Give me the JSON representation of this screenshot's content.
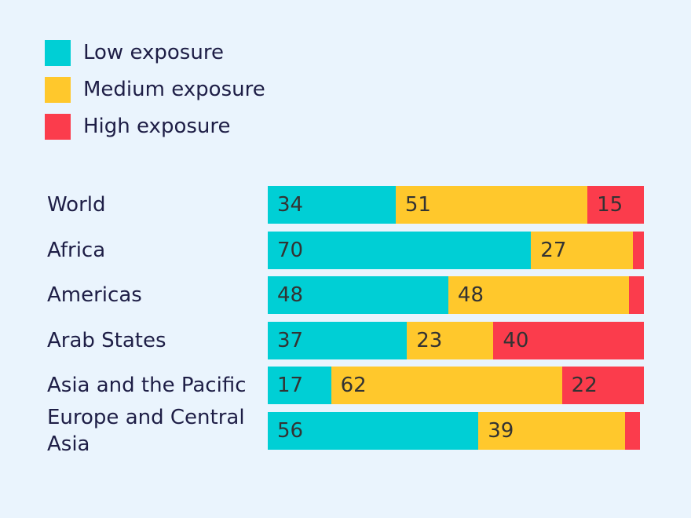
{
  "chart_data": {
    "type": "bar",
    "orientation": "horizontal",
    "stacked": true,
    "categories": [
      "World",
      "Africa",
      "Americas",
      "Arab States",
      "Asia and the Pacific",
      "Europe and Central Asia"
    ],
    "series": [
      {
        "name": "Low exposure",
        "color": "#00cfd5",
        "values": [
          34,
          70,
          48,
          37,
          17,
          56
        ]
      },
      {
        "name": "Medium exposure",
        "color": "#ffc82c",
        "values": [
          51,
          27,
          48,
          23,
          62,
          39
        ]
      },
      {
        "name": "High exposure",
        "color": "#fb3c4c",
        "values": [
          15,
          3,
          4,
          40,
          22,
          4
        ]
      }
    ],
    "data_labels": [
      [
        "34",
        "51",
        "15"
      ],
      [
        "70",
        "27",
        ""
      ],
      [
        "48",
        "48",
        ""
      ],
      [
        "37",
        "23",
        "40"
      ],
      [
        "17",
        "62",
        "22"
      ],
      [
        "56",
        "39",
        ""
      ]
    ],
    "legend_position": "top-left",
    "xlim": [
      0,
      100
    ],
    "grid": false
  }
}
